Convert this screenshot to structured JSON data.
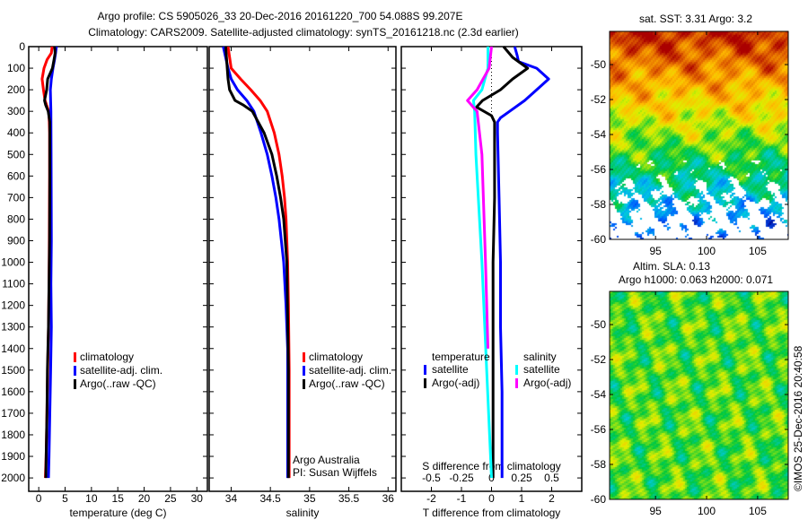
{
  "header": {
    "title_line1": "Argo profile: CS 5905026_33 20-Dec-2016 20161220_700 54.088S 99.207E",
    "title_line2": "Climatology: CARS2009. Satellite-adjusted climatology: synTS_20161218.nc (2.3d earlier)"
  },
  "colors": {
    "climatology": "#ff0000",
    "satellite_adj": "#0000ff",
    "argo": "#000000",
    "sal_satellite": "#00ffff",
    "sal_argo": "#ff00ff"
  },
  "chart_data": [
    {
      "type": "line",
      "id": "temperature",
      "xlabel": "temperature (deg C)",
      "ylabel": "",
      "xlim": [
        -1.9,
        32
      ],
      "ylim": [
        2062,
        0
      ],
      "xticks": [
        0,
        5,
        10,
        15,
        20,
        25,
        30
      ],
      "yticks": [
        0,
        100,
        200,
        300,
        400,
        500,
        600,
        700,
        800,
        900,
        1000,
        1100,
        1200,
        1300,
        1400,
        1500,
        1600,
        1700,
        1800,
        1900,
        2000
      ],
      "legend": [
        "climatology",
        "satellite-adj. clim.",
        "Argo(..raw -QC)"
      ],
      "series": [
        {
          "name": "climatology",
          "color": "#ff0000",
          "depth": [
            0,
            30,
            60,
            100,
            150,
            200,
            250,
            300,
            350,
            400,
            600,
            900,
            1100,
            1300,
            1500,
            1700,
            1900,
            2000
          ],
          "values": [
            2.55,
            2.4,
            1.6,
            1.0,
            0.63,
            0.9,
            1.2,
            1.9,
            2.0,
            2.05,
            2.05,
            2.0,
            1.95,
            1.85,
            1.7,
            1.55,
            1.4,
            1.25
          ]
        },
        {
          "name": "satellite-adj. clim.",
          "color": "#0000ff",
          "depth": [
            0,
            30,
            60,
            100,
            150,
            200,
            300,
            500,
            900,
            1100,
            1300,
            1500,
            1700,
            1900,
            2000
          ],
          "values": [
            3.35,
            3.2,
            3.0,
            2.7,
            2.4,
            2.2,
            2.3,
            2.35,
            2.4,
            2.3,
            2.4,
            2.25,
            2.1,
            1.95,
            1.85
          ]
        },
        {
          "name": "Argo(..raw -QC)",
          "color": "#000000",
          "depth": [
            0,
            30,
            60,
            100,
            150,
            200,
            250,
            270,
            300,
            350,
            400,
            600,
            900,
            1100,
            1300,
            1500,
            1700,
            1900,
            2000
          ],
          "values": [
            3.0,
            3.1,
            2.9,
            2.6,
            1.7,
            1.5,
            1.1,
            1.3,
            1.8,
            2.1,
            2.1,
            2.1,
            2.05,
            1.95,
            1.85,
            1.65,
            1.55,
            1.4,
            1.35
          ]
        }
      ]
    },
    {
      "type": "line",
      "id": "salinity",
      "xlabel": "salinity",
      "xlim": [
        33.72,
        36.1
      ],
      "ylim": [
        2062,
        0
      ],
      "xticks": [
        34,
        34.5,
        35,
        35.5,
        36
      ],
      "xticklabels": [
        "34",
        "34.5",
        "35",
        "35.5",
        "36"
      ],
      "legend": [
        "climatology",
        "satellite-adj. clim.",
        "Argo(..raw -QC)"
      ],
      "annotation": [
        "Argo Australia",
        "PI: Susan Wijffels"
      ],
      "series": [
        {
          "name": "climatology",
          "color": "#ff0000",
          "depth": [
            0,
            100,
            150,
            200,
            250,
            300,
            400,
            500,
            600,
            700,
            800,
            1000,
            1200,
            1500,
            2000
          ],
          "values": [
            33.96,
            34.0,
            34.12,
            34.25,
            34.37,
            34.46,
            34.55,
            34.61,
            34.65,
            34.68,
            34.7,
            34.72,
            34.73,
            34.74,
            34.74
          ]
        },
        {
          "name": "satellite-adj. clim.",
          "color": "#0000ff",
          "depth": [
            0,
            100,
            150,
            200,
            250,
            300,
            400,
            500,
            600,
            700,
            800,
            900,
            1000,
            1200,
            1400,
            2000
          ],
          "values": [
            33.9,
            33.96,
            34.0,
            34.08,
            34.2,
            34.29,
            34.38,
            34.46,
            34.52,
            34.57,
            34.61,
            34.64,
            34.67,
            34.7,
            34.72,
            34.72
          ]
        },
        {
          "name": "Argo(..raw -QC)",
          "color": "#000000",
          "depth": [
            0,
            100,
            150,
            200,
            250,
            270,
            300,
            400,
            500,
            600,
            700,
            800,
            1000,
            1500,
            2000
          ],
          "values": [
            33.93,
            33.95,
            33.96,
            33.98,
            34.05,
            34.15,
            34.27,
            34.42,
            34.52,
            34.58,
            34.63,
            34.67,
            34.71,
            34.73,
            34.73
          ]
        }
      ]
    },
    {
      "type": "line",
      "id": "differences",
      "xlabel": "T difference from climatology",
      "x2label": "S difference from climatology",
      "xlim": [
        -3,
        3
      ],
      "x2lim": [
        -0.75,
        0.75
      ],
      "ylim": [
        2062,
        0
      ],
      "xticks": [
        -2,
        -1,
        0,
        1,
        2
      ],
      "xticklabels": [
        "-2",
        "-1",
        "0",
        "1",
        "2"
      ],
      "x2ticks": [
        -0.5,
        -0.25,
        0,
        0.25,
        0.5
      ],
      "x2ticklabels": [
        "-0.5",
        "-0.25",
        "0",
        "0.25",
        "0.5"
      ],
      "legend_temperature_title": "temperature",
      "legend_salinity_title": "salinity",
      "legend_temperature": [
        "satellite",
        "Argo(-adj)"
      ],
      "legend_salinity": [
        "satellite",
        "Argo(-adj)"
      ],
      "series": [
        {
          "name": "temperature satellite",
          "axis": "T",
          "color": "#0000ff",
          "depth": [
            0,
            40,
            70,
            100,
            150,
            200,
            250,
            300,
            330,
            350,
            400,
            700,
            1000,
            1300,
            1600,
            1900,
            2000
          ],
          "values": [
            0.77,
            0.85,
            0.9,
            1.5,
            1.9,
            1.5,
            1.1,
            0.6,
            0.3,
            0.2,
            0.2,
            0.25,
            0.3,
            0.3,
            0.35,
            0.35,
            0.35
          ]
        },
        {
          "name": "temperature Argo(-adj)",
          "axis": "T",
          "color": "#000000",
          "depth": [
            0,
            50,
            100,
            150,
            200,
            250,
            280,
            320,
            350,
            400,
            700,
            1000,
            1300,
            1600,
            1900,
            2000
          ],
          "values": [
            0.4,
            0.7,
            1.2,
            0.7,
            0.3,
            -0.3,
            -0.5,
            0.0,
            0.1,
            0.1,
            0.1,
            0.05,
            0.05,
            0.05,
            0.05,
            0.05
          ]
        },
        {
          "name": "salinity satellite",
          "axis": "S",
          "color": "#00ffff",
          "depth": [
            0,
            100,
            200,
            250,
            300,
            500,
            1000,
            1500,
            2000
          ],
          "values": [
            -0.03,
            -0.03,
            -0.08,
            -0.15,
            -0.14,
            -0.13,
            -0.08,
            -0.04,
            0.0
          ]
        },
        {
          "name": "salinity Argo(-adj)",
          "axis": "S",
          "color": "#ff00ff",
          "depth": [
            0,
            100,
            200,
            250,
            300,
            500,
            1000,
            1400
          ],
          "values": [
            0.0,
            -0.02,
            -0.12,
            -0.2,
            -0.12,
            -0.08,
            -0.05,
            -0.03
          ]
        }
      ]
    },
    {
      "type": "heatmap",
      "id": "sst_map",
      "title": "sat. SST: 3.31 Argo: 3.2",
      "xlim": [
        90.5,
        108
      ],
      "ylim": [
        -60,
        -48.1
      ],
      "xticks": [
        95,
        100,
        105
      ],
      "yticks": [
        -50,
        -52,
        -54,
        -56,
        -58,
        -60
      ]
    },
    {
      "type": "heatmap",
      "id": "sla_map",
      "title_line1": "Altim. SLA: 0.13",
      "title_line2": "Argo h1000: 0.063 h2000: 0.071",
      "xlim": [
        90.5,
        108
      ],
      "ylim": [
        -60,
        -48.1
      ],
      "xticks": [
        95,
        100,
        105
      ],
      "yticks": [
        -50,
        -52,
        -54,
        -56,
        -58,
        -60
      ]
    }
  ],
  "footer": {
    "timestamp": "©IMOS 25-Dec-2016 20:40:58"
  }
}
